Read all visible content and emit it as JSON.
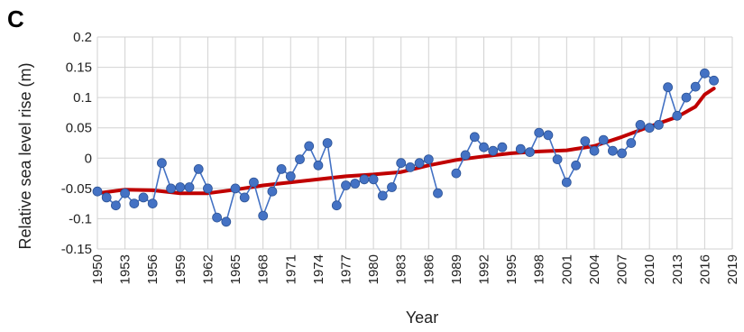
{
  "panel_label": "C",
  "chart_data": {
    "type": "line",
    "xlabel": "Year",
    "ylabel": "Relative sea level rise (m)",
    "xlim": [
      1950,
      2019
    ],
    "ylim": [
      -0.15,
      0.2
    ],
    "grid": true,
    "x_ticks": [
      "1950",
      "1953",
      "1956",
      "1959",
      "1962",
      "1965",
      "1968",
      "1971",
      "1974",
      "1977",
      "1980",
      "1983",
      "1986",
      "1989",
      "1992",
      "1995",
      "1998",
      "2001",
      "2004",
      "2007",
      "2010",
      "2013",
      "2016",
      "2019"
    ],
    "y_ticks": [
      "0.2",
      "0.15",
      "0.1",
      "0.05",
      "0",
      "-0.05",
      "-0.1",
      "-0.15"
    ],
    "y_tick_values": [
      0.2,
      0.15,
      0.1,
      0.05,
      0,
      -0.05,
      -0.1,
      -0.15
    ],
    "colors": {
      "observed": "#4472c4",
      "trend": "#c00000"
    },
    "series": [
      {
        "x": [
          1950,
          1951,
          1952,
          1953,
          1954,
          1955,
          1956,
          1957,
          1958,
          1959,
          1960,
          1961,
          1962,
          1963,
          1964,
          1965,
          1966,
          1967,
          1968,
          1969,
          1970,
          1971,
          1972,
          1973,
          1974,
          1975,
          1976,
          1977,
          1978,
          1979,
          1980,
          1981,
          1982,
          1983,
          1984,
          1985,
          1986,
          1987,
          1988,
          1989,
          1990,
          1991,
          1992,
          1993,
          1994,
          1995,
          1996,
          1997,
          1998,
          1999,
          2000,
          2001,
          2002,
          2003,
          2004,
          2005,
          2006,
          2007,
          2008,
          2009,
          2010,
          2011,
          2012,
          2013,
          2014,
          2015,
          2016,
          2017
        ],
        "values": [
          -0.055,
          -0.065,
          -0.078,
          -0.058,
          -0.075,
          -0.065,
          -0.075,
          -0.008,
          -0.05,
          -0.048,
          -0.048,
          -0.018,
          -0.05,
          -0.098,
          -0.105,
          -0.05,
          -0.065,
          -0.04,
          -0.095,
          -0.055,
          -0.018,
          -0.03,
          -0.002,
          0.02,
          -0.012,
          0.025,
          -0.078,
          -0.045,
          -0.042,
          -0.035,
          -0.035,
          -0.062,
          -0.048,
          -0.008,
          -0.015,
          -0.008,
          -0.002,
          -0.058,
          null,
          -0.025,
          0.005,
          0.035,
          0.018,
          0.012,
          0.018,
          null,
          0.015,
          0.01,
          0.042,
          0.038,
          -0.002,
          -0.04,
          -0.012,
          0.028,
          0.012,
          0.03,
          0.012,
          0.008,
          0.025,
          0.055,
          0.05,
          0.055,
          0.117,
          0.07,
          0.1,
          0.118,
          0.14,
          0.128
        ]
      },
      {
        "x": [
          1950,
          1953,
          1956,
          1959,
          1962,
          1965,
          1968,
          1971,
          1974,
          1977,
          1980,
          1983,
          1986,
          1989,
          1992,
          1995,
          1998,
          2001,
          2004,
          2007,
          2010,
          2013,
          2015,
          2016,
          2017
        ],
        "values": [
          -0.058,
          -0.052,
          -0.053,
          -0.058,
          -0.058,
          -0.052,
          -0.045,
          -0.04,
          -0.035,
          -0.03,
          -0.027,
          -0.023,
          -0.012,
          -0.003,
          0.003,
          0.008,
          0.011,
          0.013,
          0.02,
          0.035,
          0.052,
          0.068,
          0.085,
          0.105,
          0.115
        ]
      }
    ]
  }
}
